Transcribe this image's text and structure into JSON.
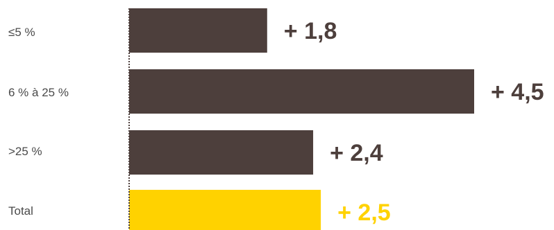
{
  "chart_data": {
    "type": "bar",
    "orientation": "horizontal",
    "categories": [
      "≤5 %",
      "6 % à 25 %",
      ">25 %",
      "Total"
    ],
    "values": [
      1.8,
      4.5,
      2.4,
      2.5
    ],
    "value_labels": [
      "+ 1,8",
      "+ 4,5",
      "+ 2,4",
      "+ 2,5"
    ],
    "bar_colors": [
      "#4d3f3c",
      "#4d3f3c",
      "#4d3f3c",
      "#ffd200"
    ],
    "label_colors": [
      "#4d3f3c",
      "#4d3f3c",
      "#4d3f3c",
      "#ffd200"
    ],
    "title": "",
    "xlabel": "",
    "ylabel": "",
    "xlim": [
      0,
      4.5
    ],
    "grid": false,
    "legend": "none"
  }
}
